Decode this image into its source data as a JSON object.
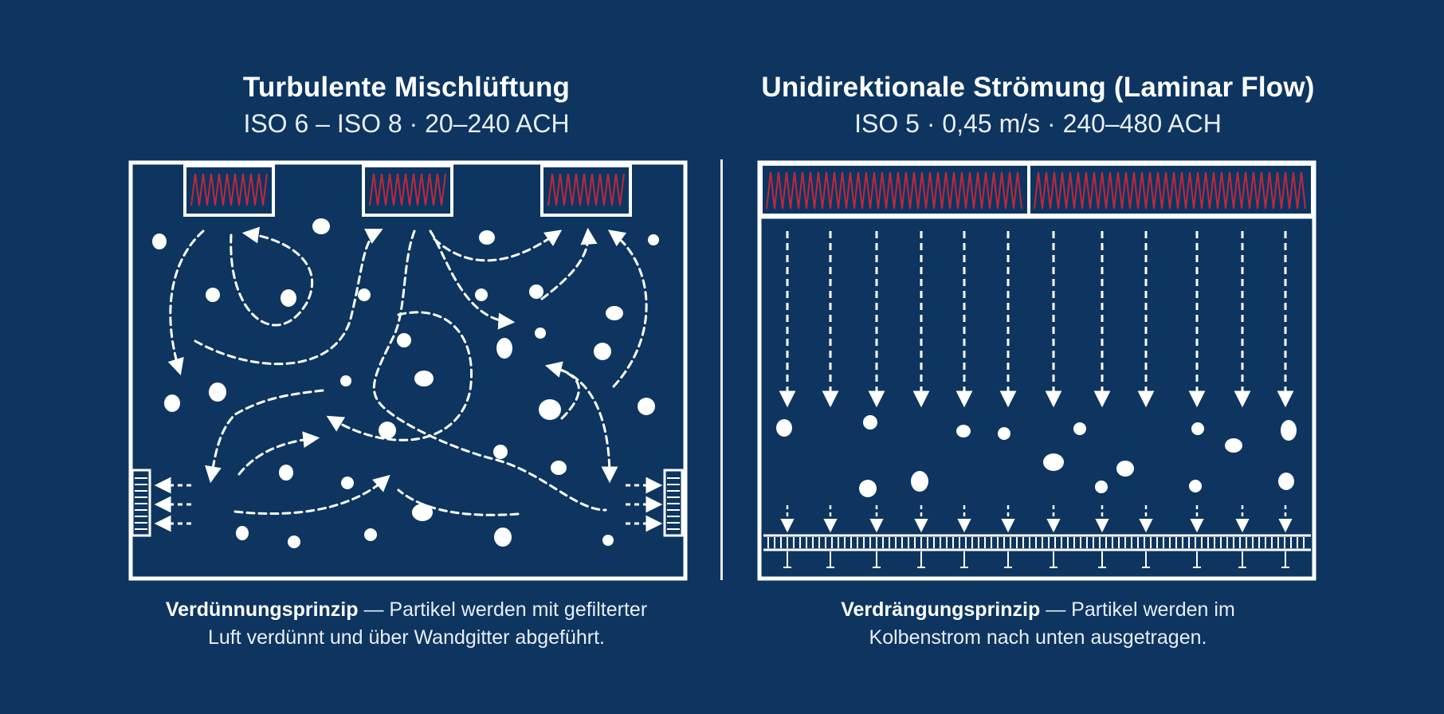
{
  "left": {
    "title": "Turbulente Mischlüftung",
    "subtitle": "ISO 6 – ISO 8 · 20–240 ACH",
    "caption_bold": "Verdünnungsprinzip",
    "caption_rest": " — Partikel werden mit gefilterter",
    "caption_line2": "Luft verdünnt und über Wandgitter abgeführt."
  },
  "right": {
    "title": "Unidirektionale Strömung (Laminar Flow)",
    "subtitle": "ISO 5 · 0,45 m/s · 240–480 ACH",
    "caption_bold": "Verdrängungsprinzip",
    "caption_rest": " — Partikel werden im",
    "caption_line2": "Kolbenstrom nach unten ausgetragen."
  },
  "colors": {
    "background": "#0d3560",
    "line": "#ffffff",
    "filter_coil": "#c0283a"
  }
}
